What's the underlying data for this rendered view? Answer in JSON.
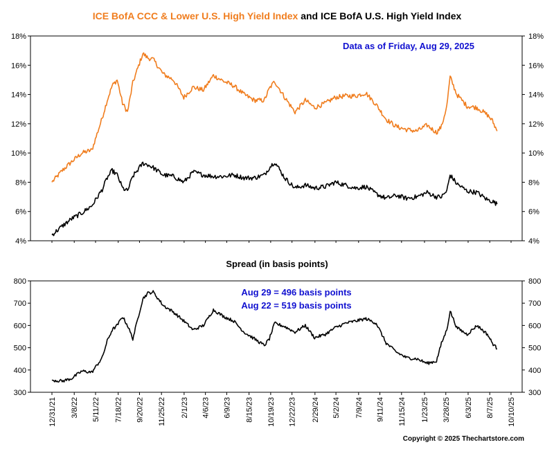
{
  "title": {
    "part1": "ICE BofA CCC & Lower U.S. High Yield Index",
    "part2": " and ICE BofA U.S. High Yield Index",
    "part1_color": "#f07d1e",
    "part2_color": "#000000"
  },
  "annotation_top": "Data as of Friday,  Aug 29, 2025",
  "annotation_color": "#1010d0",
  "copyright": "Copyright © 2025 Thechartstore.com",
  "chart_data": [
    {
      "type": "line",
      "y_ticks": [
        "4%",
        "6%",
        "8%",
        "10%",
        "12%",
        "14%",
        "16%",
        "18%"
      ],
      "ylim": [
        4,
        18
      ],
      "series": [
        {
          "name": "ICE BofA CCC & Lower U.S. High Yield Index",
          "color": "#f07d1e",
          "x": [
            "2021-12-31",
            "2022-01-31",
            "2022-02-28",
            "2022-03-31",
            "2022-04-30",
            "2022-05-31",
            "2022-06-15",
            "2022-06-30",
            "2022-07-15",
            "2022-07-31",
            "2022-08-15",
            "2022-08-31",
            "2022-09-30",
            "2022-10-15",
            "2022-10-31",
            "2022-11-30",
            "2022-12-31",
            "2023-01-31",
            "2023-02-28",
            "2023-03-31",
            "2023-04-30",
            "2023-05-31",
            "2023-06-30",
            "2023-07-31",
            "2023-08-31",
            "2023-09-30",
            "2023-10-15",
            "2023-10-31",
            "2023-11-30",
            "2023-12-31",
            "2024-01-31",
            "2024-02-28",
            "2024-03-31",
            "2024-04-30",
            "2024-05-31",
            "2024-06-30",
            "2024-07-31",
            "2024-08-31",
            "2024-09-30",
            "2024-10-31",
            "2024-11-30",
            "2024-12-31",
            "2025-01-31",
            "2025-02-28",
            "2025-03-15",
            "2025-03-31",
            "2025-04-10",
            "2025-04-30",
            "2025-05-31",
            "2025-06-30",
            "2025-07-31",
            "2025-08-15",
            "2025-08-29"
          ],
          "values": [
            8.0,
            8.8,
            9.4,
            10.0,
            10.2,
            12.4,
            13.6,
            14.6,
            15.0,
            13.4,
            12.8,
            14.8,
            16.8,
            16.5,
            16.4,
            15.4,
            15.0,
            13.8,
            14.5,
            14.3,
            15.3,
            14.9,
            14.6,
            14.0,
            13.6,
            13.6,
            14.4,
            14.9,
            13.8,
            12.8,
            13.6,
            13.1,
            13.4,
            13.8,
            13.9,
            13.9,
            14.1,
            13.3,
            12.3,
            11.8,
            11.6,
            11.5,
            11.9,
            11.4,
            11.8,
            13.2,
            15.2,
            14.0,
            13.2,
            13.1,
            12.6,
            12.2,
            11.5
          ]
        },
        {
          "name": "ICE BofA U.S. High Yield Index",
          "color": "#000000",
          "x": [
            "2021-12-31",
            "2022-01-31",
            "2022-02-28",
            "2022-03-31",
            "2022-04-30",
            "2022-05-31",
            "2022-06-15",
            "2022-06-30",
            "2022-07-15",
            "2022-07-31",
            "2022-08-15",
            "2022-08-31",
            "2022-09-30",
            "2022-10-15",
            "2022-10-31",
            "2022-11-30",
            "2022-12-31",
            "2023-01-31",
            "2023-02-28",
            "2023-03-31",
            "2023-04-30",
            "2023-05-31",
            "2023-06-30",
            "2023-07-31",
            "2023-08-31",
            "2023-09-30",
            "2023-10-15",
            "2023-10-31",
            "2023-11-30",
            "2023-12-31",
            "2024-01-31",
            "2024-02-28",
            "2024-03-31",
            "2024-04-30",
            "2024-05-31",
            "2024-06-30",
            "2024-07-31",
            "2024-08-31",
            "2024-09-30",
            "2024-10-31",
            "2024-11-30",
            "2024-12-31",
            "2025-01-31",
            "2025-02-28",
            "2025-03-15",
            "2025-03-31",
            "2025-04-10",
            "2025-04-30",
            "2025-05-31",
            "2025-06-30",
            "2025-07-31",
            "2025-08-15",
            "2025-08-29"
          ],
          "values": [
            4.4,
            5.0,
            5.5,
            5.9,
            6.4,
            7.5,
            8.3,
            8.8,
            8.5,
            7.6,
            7.4,
            8.4,
            9.3,
            9.2,
            9.0,
            8.5,
            8.4,
            8.0,
            8.7,
            8.5,
            8.4,
            8.4,
            8.5,
            8.3,
            8.3,
            8.5,
            9.0,
            9.4,
            8.3,
            7.6,
            7.8,
            7.6,
            7.7,
            8.0,
            7.8,
            7.6,
            7.7,
            7.2,
            6.9,
            7.1,
            6.9,
            7.0,
            7.3,
            7.0,
            7.0,
            7.4,
            8.5,
            7.9,
            7.4,
            7.3,
            6.8,
            6.7,
            6.5
          ]
        }
      ]
    },
    {
      "type": "line",
      "title": "Spread (in basis points)",
      "annotations": [
        "Aug 29 = 496 basis points",
        "Aug 22 = 519 basis points"
      ],
      "y_ticks": [
        "300",
        "400",
        "500",
        "600",
        "700",
        "800"
      ],
      "ylim": [
        300,
        800
      ],
      "x_ticks": [
        "12/31/21",
        "3/8/22",
        "5/11/22",
        "7/18/22",
        "9/20/22",
        "11/25/22",
        "2/1/23",
        "4/6/23",
        "6/9/23",
        "8/15/23",
        "10/19/23",
        "12/22/23",
        "2/29/24",
        "5/2/24",
        "7/9/24",
        "9/11/24",
        "11/15/24",
        "1/23/25",
        "3/28/25",
        "6/3/25",
        "8/7/25",
        "10/10/25"
      ],
      "series": [
        {
          "color": "#000000",
          "x": [
            "2021-12-31",
            "2022-01-31",
            "2022-02-28",
            "2022-03-31",
            "2022-04-30",
            "2022-05-31",
            "2022-06-15",
            "2022-06-30",
            "2022-07-15",
            "2022-07-31",
            "2022-08-15",
            "2022-08-31",
            "2022-09-30",
            "2022-10-15",
            "2022-10-31",
            "2022-11-30",
            "2022-12-31",
            "2023-01-31",
            "2023-02-28",
            "2023-03-31",
            "2023-04-30",
            "2023-05-31",
            "2023-06-30",
            "2023-07-31",
            "2023-08-31",
            "2023-09-30",
            "2023-10-15",
            "2023-10-31",
            "2023-11-30",
            "2023-12-31",
            "2024-01-31",
            "2024-02-28",
            "2024-03-31",
            "2024-04-30",
            "2024-05-31",
            "2024-06-30",
            "2024-07-31",
            "2024-08-31",
            "2024-09-30",
            "2024-10-31",
            "2024-11-30",
            "2024-12-31",
            "2025-01-31",
            "2025-02-28",
            "2025-03-15",
            "2025-03-31",
            "2025-04-10",
            "2025-04-30",
            "2025-05-31",
            "2025-06-30",
            "2025-07-31",
            "2025-08-15",
            "2025-08-29"
          ],
          "values": [
            355,
            350,
            362,
            395,
            390,
            455,
            530,
            580,
            600,
            640,
            600,
            540,
            720,
            745,
            750,
            690,
            660,
            620,
            580,
            600,
            670,
            640,
            620,
            570,
            540,
            510,
            540,
            610,
            595,
            570,
            600,
            545,
            560,
            590,
            610,
            620,
            630,
            610,
            520,
            480,
            455,
            450,
            430,
            440,
            520,
            580,
            665,
            590,
            560,
            600,
            560,
            520,
            496
          ]
        }
      ]
    }
  ]
}
